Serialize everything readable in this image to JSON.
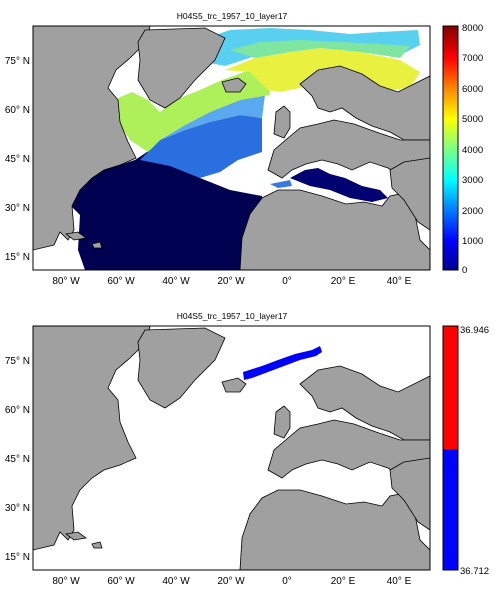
{
  "panels": [
    {
      "title": "H04S5_trc_1957_10_layer17",
      "x_ticks": [
        "80° W",
        "60° W",
        "40° W",
        "20° W",
        "0°",
        "20° E",
        "40° E"
      ],
      "y_ticks": [
        "75° N",
        "60° N",
        "45° N",
        "30° N",
        "15° N"
      ],
      "colorbar": {
        "type": "continuous",
        "ticks": [
          "0",
          "1000",
          "2000",
          "3000",
          "4000",
          "5000",
          "6000",
          "7000",
          "8000"
        ],
        "range": [
          0,
          8000
        ],
        "colormap": [
          "#00008f",
          "#0000ff",
          "#0080ff",
          "#00ffff",
          "#80ff80",
          "#ffff00",
          "#ff8000",
          "#ff0000",
          "#800000"
        ]
      }
    },
    {
      "title": "H04S5_trc_1957_10_layer17",
      "x_ticks": [
        "80° W",
        "60° W",
        "40° W",
        "20° W",
        "0°",
        "20° E",
        "40° E"
      ],
      "y_ticks": [
        "75° N",
        "60° N",
        "45° N",
        "30° N",
        "15° N"
      ],
      "colorbar": {
        "type": "two-class",
        "ticks": [
          "36.946",
          "36.712"
        ],
        "classes": [
          {
            "range": [
              36.829,
              36.946
            ],
            "color": "#ff0000"
          },
          {
            "range": [
              36.712,
              36.829
            ],
            "color": "#0000ff"
          }
        ]
      }
    }
  ],
  "colors": {
    "land": "#a0a0a0",
    "ocean_empty": "#ffffff",
    "deep_field": "#000050"
  }
}
